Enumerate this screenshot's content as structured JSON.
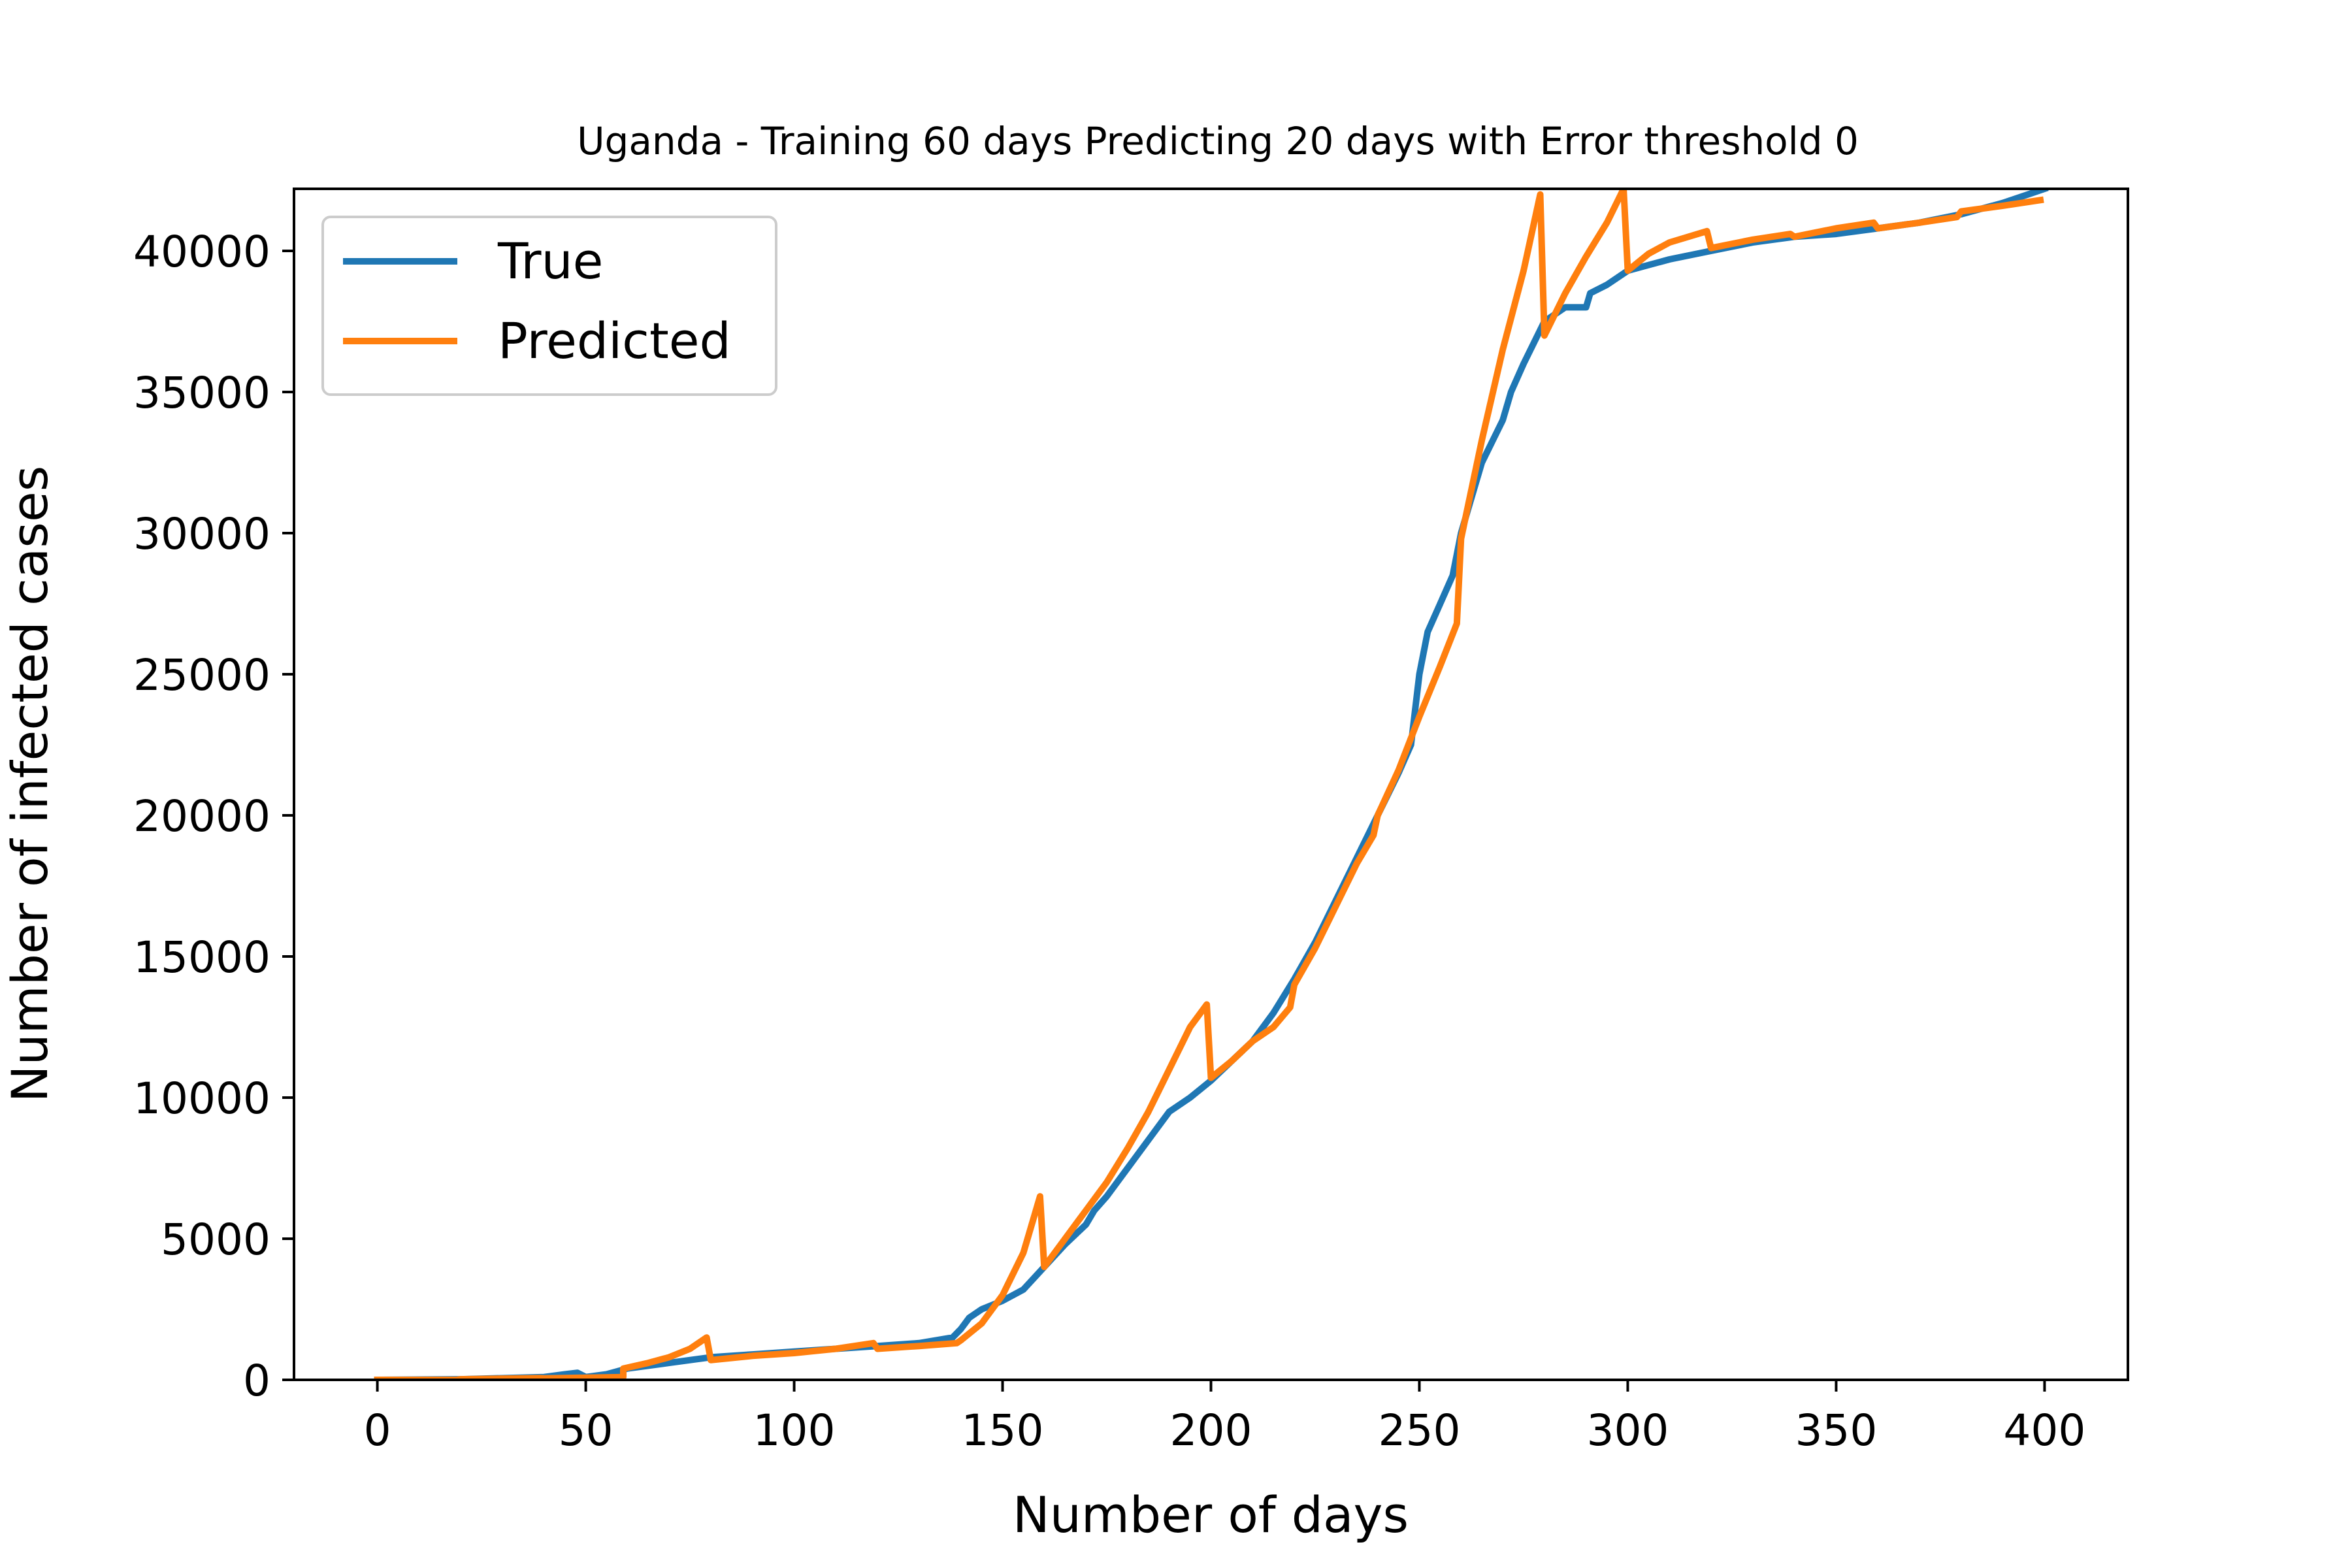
{
  "chart_data": {
    "type": "line",
    "title": "Uganda - Training 60 days Predicting 20 days with Error threshold 0",
    "xlabel": "Number of days",
    "ylabel": "Number of infected cases",
    "xlim": [
      -20,
      420
    ],
    "ylim": [
      0,
      42200
    ],
    "xticks": [
      0,
      50,
      100,
      150,
      200,
      250,
      300,
      350,
      400
    ],
    "yticks": [
      0,
      5000,
      10000,
      15000,
      20000,
      25000,
      30000,
      35000,
      40000
    ],
    "grid": false,
    "legend_position": "upper-left",
    "series": [
      {
        "name": "True",
        "color": "#1f77b4",
        "x": [
          0,
          20,
          40,
          45,
          48,
          50,
          55,
          60,
          70,
          80,
          90,
          100,
          110,
          120,
          130,
          138,
          140,
          142,
          145,
          150,
          155,
          160,
          165,
          170,
          172,
          175,
          180,
          185,
          190,
          195,
          200,
          205,
          210,
          215,
          220,
          225,
          230,
          235,
          240,
          245,
          248,
          250,
          252,
          255,
          258,
          260,
          262,
          265,
          270,
          272,
          275,
          280,
          285,
          290,
          291,
          295,
          300,
          310,
          320,
          330,
          340,
          350,
          360,
          370,
          380,
          390,
          400
        ],
        "y": [
          0,
          20,
          100,
          200,
          250,
          100,
          200,
          400,
          600,
          800,
          900,
          1000,
          1100,
          1200,
          1300,
          1500,
          1800,
          2200,
          2500,
          2800,
          3200,
          4000,
          4800,
          5500,
          6000,
          6500,
          7500,
          8500,
          9500,
          10000,
          10600,
          11300,
          12000,
          13000,
          14200,
          15500,
          17000,
          18500,
          20000,
          21500,
          22500,
          25000,
          26500,
          27500,
          28500,
          30000,
          31000,
          32500,
          34000,
          35000,
          36000,
          37500,
          38000,
          38000,
          38500,
          38800,
          39300,
          39700,
          40000,
          40300,
          40500,
          40600,
          40800,
          41000,
          41300,
          41700,
          42200
        ]
      },
      {
        "name": "Predicted",
        "color": "#ff7f0e",
        "x": [
          0,
          19,
          20,
          39,
          40,
          59,
          59.01,
          65,
          70,
          75,
          79,
          80,
          90,
          100,
          110,
          119,
          120,
          130,
          139,
          140,
          145,
          150,
          155,
          159,
          160,
          165,
          170,
          175,
          180,
          185,
          190,
          195,
          199,
          200,
          205,
          210,
          215,
          219,
          220,
          225,
          230,
          235,
          239,
          240,
          245,
          250,
          255,
          259,
          260,
          265,
          270,
          275,
          279,
          280,
          285,
          290,
          295,
          299,
          300,
          305,
          310,
          319,
          320,
          330,
          339,
          340,
          350,
          359,
          360,
          370,
          379,
          380,
          390,
          399
        ],
        "y": [
          0,
          0,
          20,
          60,
          50,
          100,
          400,
          600,
          800,
          1100,
          1500,
          700,
          850,
          950,
          1100,
          1300,
          1100,
          1200,
          1300,
          1400,
          2000,
          3000,
          4500,
          6500,
          4000,
          5000,
          6000,
          7000,
          8200,
          9500,
          11000,
          12500,
          13300,
          10700,
          11300,
          12000,
          12500,
          13200,
          14000,
          15300,
          16800,
          18300,
          19300,
          20000,
          21600,
          23500,
          25300,
          26800,
          29800,
          33300,
          36500,
          39300,
          42000,
          37000,
          38500,
          39800,
          41000,
          42200,
          39300,
          39900,
          40300,
          40700,
          40100,
          40400,
          40600,
          40500,
          40800,
          41000,
          40800,
          41000,
          41200,
          41400,
          41600,
          41800
        ]
      }
    ]
  }
}
